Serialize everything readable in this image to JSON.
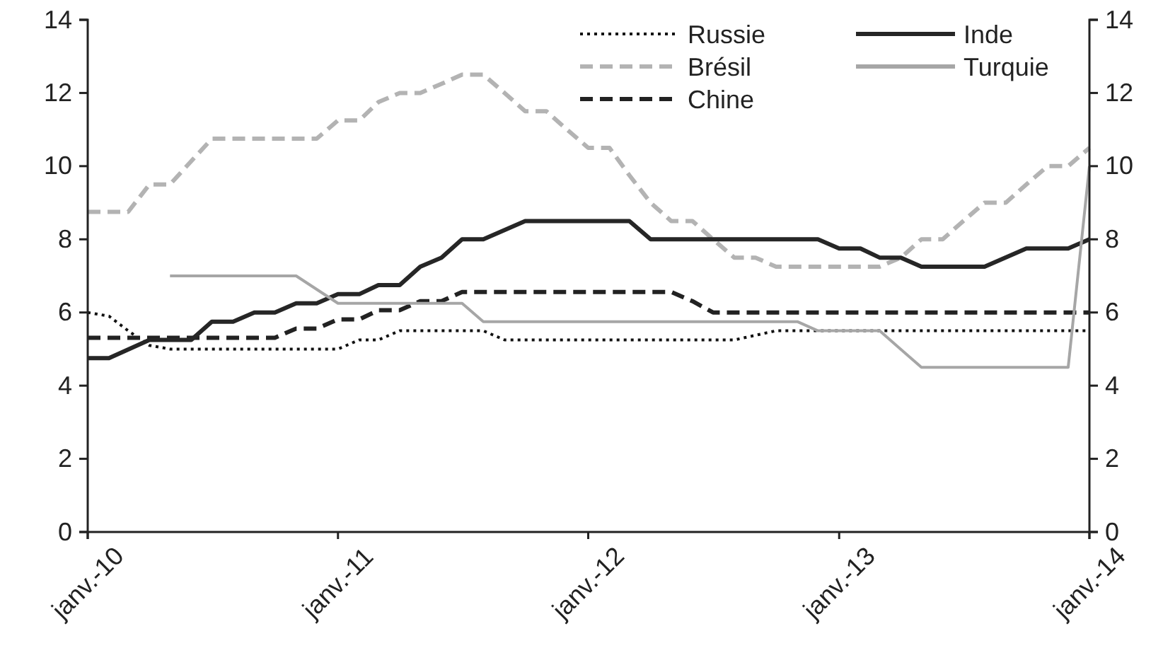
{
  "chart_data": {
    "type": "line",
    "xlim": [
      "2010-01",
      "2014-01"
    ],
    "xticks": [
      {
        "value": "2010-01",
        "label": "janv.-10"
      },
      {
        "value": "2011-01",
        "label": "janv.-11"
      },
      {
        "value": "2012-01",
        "label": "janv.-12"
      },
      {
        "value": "2013-01",
        "label": "janv.-13"
      },
      {
        "value": "2014-01",
        "label": "janv.-14"
      }
    ],
    "ylim": [
      0,
      14
    ],
    "yticks": [
      0,
      2,
      4,
      6,
      8,
      10,
      12,
      14
    ],
    "y2lim": [
      0,
      14
    ],
    "y2ticks": [
      0,
      2,
      4,
      6,
      8,
      10,
      12,
      14
    ],
    "grid": false,
    "legend": "top right",
    "series": [
      {
        "name": "Russie",
        "color": "#111111",
        "line_style": "dotted",
        "x": [
          "2010-01",
          "2010-02",
          "2010-03",
          "2010-04",
          "2010-05",
          "2011-01",
          "2011-02",
          "2011-03",
          "2011-04",
          "2011-08",
          "2011-09",
          "2012-08",
          "2012-10",
          "2014-01"
        ],
        "values": [
          6,
          5.9,
          5.5,
          5.1,
          5,
          5,
          5.25,
          5.25,
          5.5,
          5.5,
          5.25,
          5.25,
          5.5,
          5.5
        ]
      },
      {
        "name": "Brésil",
        "color": "#b3b3b3",
        "line_style": "dashed",
        "x": [
          "2010-01",
          "2010-03",
          "2010-04",
          "2010-05",
          "2010-07",
          "2010-12",
          "2011-01",
          "2011-02",
          "2011-03",
          "2011-04",
          "2011-05",
          "2011-06",
          "2011-07",
          "2011-08",
          "2011-09",
          "2011-10",
          "2011-11",
          "2011-12",
          "2012-01",
          "2012-02",
          "2012-03",
          "2012-04",
          "2012-05",
          "2012-06",
          "2012-07",
          "2012-08",
          "2012-09",
          "2012-10",
          "2013-03",
          "2013-04",
          "2013-05",
          "2013-06",
          "2013-07",
          "2013-08",
          "2013-09",
          "2013-10",
          "2013-11",
          "2013-12",
          "2014-01"
        ],
        "values": [
          8.75,
          8.75,
          9.5,
          9.5,
          10.75,
          10.75,
          11.25,
          11.25,
          11.75,
          12,
          12,
          12.25,
          12.5,
          12.5,
          12,
          11.5,
          11.5,
          11,
          10.5,
          10.5,
          9.75,
          9,
          8.5,
          8.5,
          8,
          7.5,
          7.5,
          7.25,
          7.25,
          7.5,
          8,
          8,
          8.5,
          9,
          9,
          9.5,
          10,
          10,
          10.5
        ]
      },
      {
        "name": "Chine",
        "color": "#222222",
        "line_style": "dashed",
        "x": [
          "2010-01",
          "2010-10",
          "2010-11",
          "2010-12",
          "2011-01",
          "2011-02",
          "2011-03",
          "2011-04",
          "2011-05",
          "2011-06",
          "2011-07",
          "2012-05",
          "2012-06",
          "2012-07",
          "2014-01"
        ],
        "values": [
          5.31,
          5.31,
          5.56,
          5.56,
          5.81,
          5.81,
          6.06,
          6.06,
          6.31,
          6.31,
          6.56,
          6.56,
          6.31,
          6,
          6
        ]
      },
      {
        "name": "Inde",
        "color": "#262626",
        "line_style": "solid",
        "x": [
          "2010-01",
          "2010-02",
          "2010-04",
          "2010-06",
          "2010-07",
          "2010-08",
          "2010-09",
          "2010-10",
          "2010-11",
          "2010-12",
          "2011-01",
          "2011-02",
          "2011-03",
          "2011-04",
          "2011-05",
          "2011-06",
          "2011-07",
          "2011-08",
          "2011-10",
          "2012-03",
          "2012-04",
          "2012-12",
          "2013-01",
          "2013-02",
          "2013-03",
          "2013-04",
          "2013-05",
          "2013-08",
          "2013-10",
          "2013-12",
          "2014-01"
        ],
        "values": [
          4.75,
          4.75,
          5.25,
          5.25,
          5.75,
          5.75,
          6,
          6,
          6.25,
          6.25,
          6.5,
          6.5,
          6.75,
          6.75,
          7.25,
          7.5,
          8,
          8,
          8.5,
          8.5,
          8,
          8,
          7.75,
          7.75,
          7.5,
          7.5,
          7.25,
          7.25,
          7.75,
          7.75,
          8
        ]
      },
      {
        "name": "Turquie",
        "color": "#a6a6a6",
        "line_style": "solid",
        "x": [
          "2010-05",
          "2010-11",
          "2011-01",
          "2011-07",
          "2011-08",
          "2012-11",
          "2012-12",
          "2013-03",
          "2013-05",
          "2013-12",
          "2014-01"
        ],
        "values": [
          7,
          7,
          6.25,
          6.25,
          5.75,
          5.75,
          5.5,
          5.5,
          4.5,
          4.5,
          10
        ]
      }
    ]
  }
}
